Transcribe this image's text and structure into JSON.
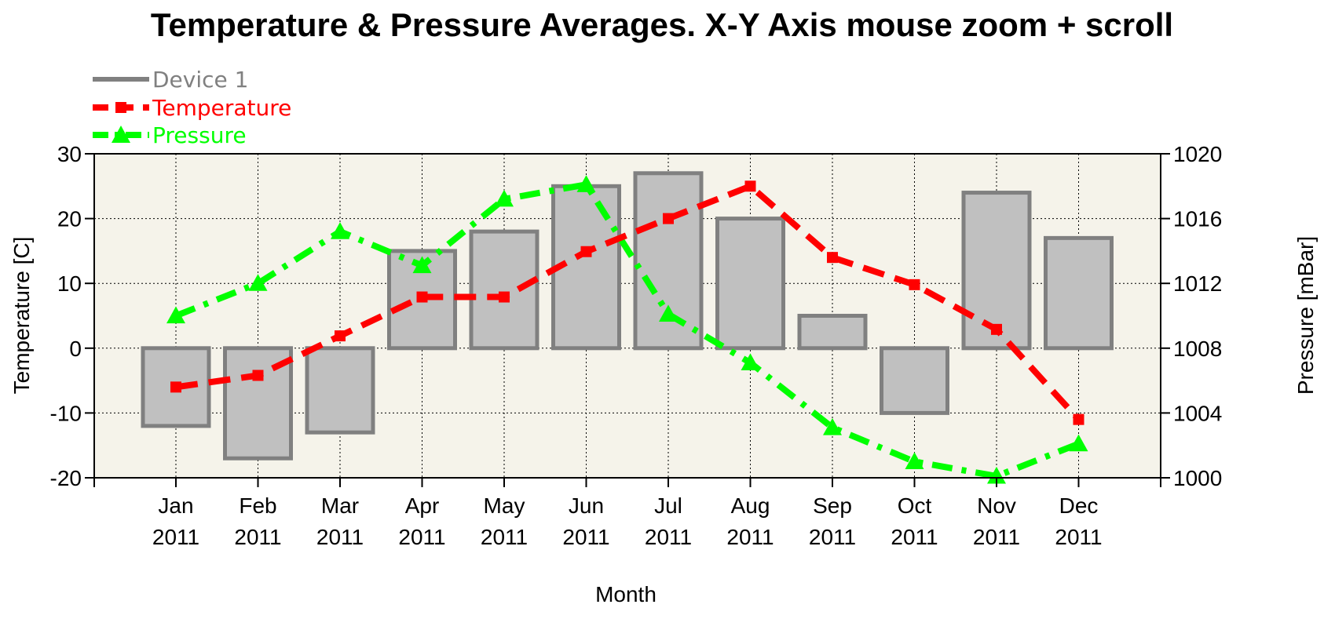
{
  "chart_data": {
    "type": "bar",
    "title": "Temperature & Pressure Averages. X-Y Axis mouse zoom + scroll",
    "xlabel": "Month",
    "ylabel": "Temperature [C]",
    "y2label": "Pressure [mBar]",
    "categories": [
      [
        "Jan",
        "2011"
      ],
      [
        "Feb",
        "2011"
      ],
      [
        "Mar",
        "2011"
      ],
      [
        "Apr",
        "2011"
      ],
      [
        "May",
        "2011"
      ],
      [
        "Jun",
        "2011"
      ],
      [
        "Jul",
        "2011"
      ],
      [
        "Aug",
        "2011"
      ],
      [
        "Sep",
        "2011"
      ],
      [
        "Oct",
        "2011"
      ],
      [
        "Nov",
        "2011"
      ],
      [
        "Dec",
        "2011"
      ]
    ],
    "ylim": [
      -20,
      30
    ],
    "yticks": [
      -20,
      -10,
      0,
      10,
      20,
      30
    ],
    "y2lim": [
      1000,
      1020
    ],
    "y2ticks": [
      1000,
      1004,
      1008,
      1012,
      1016,
      1020
    ],
    "grid": true,
    "legend_position": "top-left",
    "series": [
      {
        "name": "Device 1",
        "type": "bar",
        "axis": "left",
        "color": "#808080",
        "fill": "#c0c0c0",
        "values": [
          -12,
          -17,
          -13,
          15,
          18,
          25,
          27,
          20,
          5,
          -10,
          24,
          17
        ]
      },
      {
        "name": "Temperature",
        "type": "line",
        "axis": "left",
        "color": "#ff0000",
        "marker": "square",
        "values": [
          -6,
          -4.2,
          1.9,
          7.9,
          7.9,
          14.9,
          20,
          25,
          14,
          9.8,
          2.9,
          -11
        ]
      },
      {
        "name": "Pressure",
        "type": "line",
        "axis": "right",
        "color": "#00ff00",
        "marker": "triangle",
        "values": [
          1010,
          1012,
          1015.2,
          1013.1,
          1017.2,
          1018.1,
          1010.1,
          1007.1,
          1003.1,
          1001,
          1000.1,
          1002.1
        ]
      }
    ],
    "plot_background": "#f5f3ea"
  }
}
